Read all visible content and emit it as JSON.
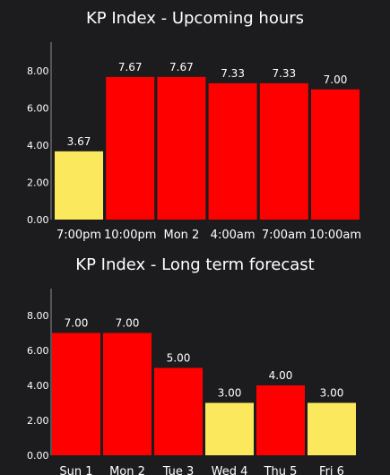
{
  "colors": {
    "background": "#1c1c1e",
    "high": "#ff0000",
    "low": "#fbe85c",
    "text": "#ffffff",
    "axis": "#8e8e93"
  },
  "chart_data": [
    {
      "type": "bar",
      "title": "KP Index - Upcoming hours",
      "categories": [
        "7:00pm",
        "10:00pm",
        "Mon 2",
        "4:00am",
        "7:00am",
        "10:00am"
      ],
      "values": [
        3.67,
        7.67,
        7.67,
        7.33,
        7.33,
        7.0
      ],
      "data_labels": [
        "3.67",
        "7.67",
        "7.67",
        "7.33",
        "7.33",
        "7.00"
      ],
      "bar_colors": [
        "#fbe85c",
        "#ff0000",
        "#ff0000",
        "#ff0000",
        "#ff0000",
        "#ff0000"
      ],
      "ylim": [
        0,
        9
      ],
      "yticks": [
        "0.00",
        "2.00",
        "4.00",
        "6.00",
        "8.00"
      ],
      "ytick_values": [
        0,
        2,
        4,
        6,
        8
      ],
      "grid": false
    },
    {
      "type": "bar",
      "title": "KP Index - Long term forecast",
      "categories": [
        "Sun 1",
        "Mon 2",
        "Tue 3",
        "Wed 4",
        "Thu 5",
        "Fri 6"
      ],
      "values": [
        7.0,
        7.0,
        5.0,
        3.0,
        4.0,
        3.0
      ],
      "data_labels": [
        "7.00",
        "7.00",
        "5.00",
        "3.00",
        "4.00",
        "3.00"
      ],
      "bar_colors": [
        "#ff0000",
        "#ff0000",
        "#ff0000",
        "#fbe85c",
        "#ff0000",
        "#fbe85c"
      ],
      "ylim": [
        0,
        9
      ],
      "yticks": [
        "0.00",
        "2.00",
        "4.00",
        "6.00",
        "8.00"
      ],
      "ytick_values": [
        0,
        2,
        4,
        6,
        8
      ],
      "grid": false
    }
  ]
}
